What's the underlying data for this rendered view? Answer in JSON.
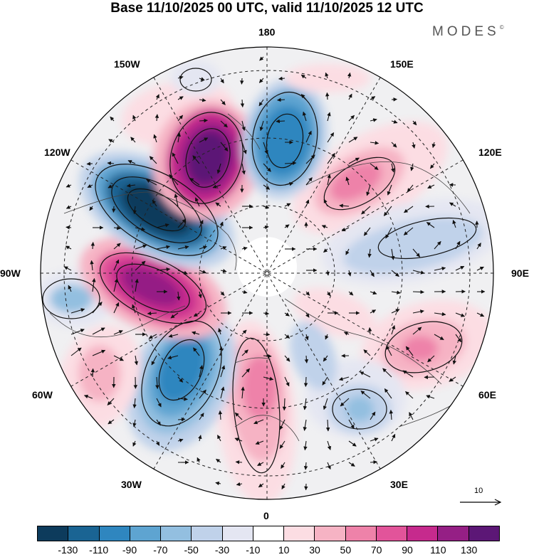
{
  "title": "Base 11/10/2025 00 UTC, valid 11/10/2025 12 UTC",
  "brand": "MODES",
  "brand_mark": "©",
  "longitude_labels": {
    "top": "180",
    "top_left": "150W",
    "top_right": "150E",
    "upper_left": "120W",
    "upper_right": "120E",
    "left": "90W",
    "right": "90E",
    "lower_left": "60W",
    "lower_right": "60E",
    "bottom_left": "30W",
    "bottom_right": "30E",
    "bottom": "0"
  },
  "reference_vector": {
    "label": "10"
  },
  "colorbar": {
    "colors": [
      "#0d3b5c",
      "#1a6493",
      "#2f86bf",
      "#5ea4d1",
      "#93bfe0",
      "#c0d2ea",
      "#e4e6f2",
      "#ffffff",
      "#fcdde3",
      "#f6b3c4",
      "#ee82a9",
      "#e2549a",
      "#c62a8d",
      "#951f85",
      "#5c1776"
    ],
    "ticks": [
      "-130",
      "-110",
      "-90",
      "-70",
      "-50",
      "-30",
      "-10",
      "10",
      "30",
      "50",
      "70",
      "90",
      "110",
      "130"
    ]
  },
  "anomalies": [
    {
      "name": "high-aleutian-west",
      "value": 130,
      "kind": "positive"
    },
    {
      "name": "low-north-pacific",
      "value": -110,
      "kind": "negative"
    },
    {
      "name": "low-north-america",
      "value": -130,
      "kind": "negative"
    },
    {
      "name": "high-canada",
      "value": 130,
      "kind": "positive"
    },
    {
      "name": "low-north-atlantic",
      "value": -110,
      "kind": "negative"
    },
    {
      "name": "high-europe",
      "value": 90,
      "kind": "positive"
    },
    {
      "name": "high-siberia",
      "value": 70,
      "kind": "positive"
    },
    {
      "name": "low-central-asia",
      "value": -50,
      "kind": "negative"
    },
    {
      "name": "high-west-asia",
      "value": 70,
      "kind": "positive"
    },
    {
      "name": "low-east-europe",
      "value": -50,
      "kind": "negative"
    }
  ]
}
